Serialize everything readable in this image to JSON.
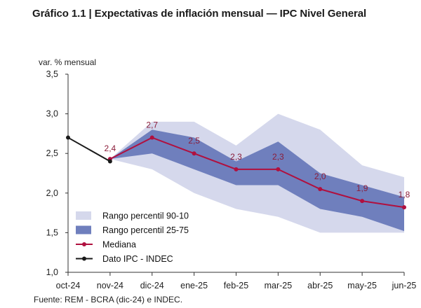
{
  "title": "Gráfico 1.1 | Expectativas de inflación mensual — IPC Nivel General",
  "source": "Fuente: REM - BCRA (dic-24) e INDEC.",
  "colors": {
    "band_90_10": "#d5d8ec",
    "band_25_75": "#6f7fbd",
    "median": "#b0103f",
    "ipc": "#1a1a1a",
    "axis": "#333333"
  },
  "chart_data": {
    "type": "area",
    "ylabel": "var. % mensual",
    "ylim": [
      1.0,
      3.5
    ],
    "yticks": [
      1.0,
      1.5,
      2.0,
      2.5,
      3.0,
      3.5
    ],
    "ytick_labels": [
      "1,0",
      "1,5",
      "2,0",
      "2,5",
      "3,0",
      "3,5"
    ],
    "categories": [
      "oct-24",
      "nov-24",
      "dic-24",
      "ene-25",
      "feb-25",
      "mar-25",
      "abr-25",
      "may-25",
      "jun-25"
    ],
    "series": [
      {
        "name": "Dato IPC - INDEC",
        "kind": "line",
        "color": "#1a1a1a",
        "x": [
          "oct-24",
          "nov-24"
        ],
        "values": [
          2.7,
          2.4
        ]
      },
      {
        "name": "Mediana",
        "kind": "line",
        "color": "#b0103f",
        "x": [
          "nov-24",
          "dic-24",
          "ene-25",
          "feb-25",
          "mar-25",
          "abr-25",
          "may-25",
          "jun-25"
        ],
        "values": [
          2.43,
          2.7,
          2.5,
          2.3,
          2.3,
          2.05,
          1.9,
          1.82
        ],
        "labels": [
          "2,4",
          "2,7",
          "2,5",
          "2,3",
          "2,3",
          "2,0",
          "1,9",
          "1,8"
        ],
        "label_on_ipc": 0
      },
      {
        "name": "Rango percentil 90-10",
        "kind": "band",
        "color": "#d5d8ec",
        "x": [
          "nov-24",
          "dic-24",
          "ene-25",
          "feb-25",
          "mar-25",
          "abr-25",
          "may-25",
          "jun-25"
        ],
        "low": [
          2.43,
          2.3,
          2.0,
          1.8,
          1.7,
          1.5,
          1.5,
          1.5
        ],
        "high": [
          2.43,
          2.9,
          2.9,
          2.6,
          3.0,
          2.8,
          2.35,
          2.2
        ]
      },
      {
        "name": "Rango percentil 25-75",
        "kind": "band",
        "color": "#6f7fbd",
        "x": [
          "nov-24",
          "dic-24",
          "ene-25",
          "feb-25",
          "mar-25",
          "abr-25",
          "may-25",
          "jun-25"
        ],
        "low": [
          2.43,
          2.5,
          2.3,
          2.1,
          2.1,
          1.8,
          1.7,
          1.52
        ],
        "high": [
          2.43,
          2.8,
          2.7,
          2.4,
          2.65,
          2.25,
          2.1,
          1.95
        ]
      }
    ],
    "legend": [
      "Rango percentil 90-10",
      "Rango percentil 25-75",
      "Mediana",
      "Dato IPC - INDEC"
    ],
    "legend_position": "bottom-left"
  }
}
